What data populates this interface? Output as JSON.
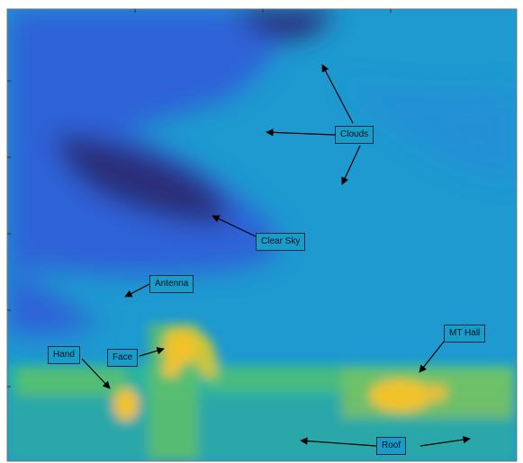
{
  "annotations": {
    "clouds": "Clouds",
    "clear_sky": "Clear Sky",
    "antenna": "Antenna",
    "hand": "Hand",
    "face": "Face",
    "mt_hall": "MT Hall",
    "roof": "Roof"
  },
  "colors": {
    "deep": "#2b2e7a",
    "blue": "#2f62d8",
    "cyan": "#1f9fd0",
    "teal": "#2ab3a0",
    "green": "#5ebf6a",
    "yellow": "#f2c22a",
    "annotation_border": "#1f2a44",
    "arrow": "#000000"
  }
}
